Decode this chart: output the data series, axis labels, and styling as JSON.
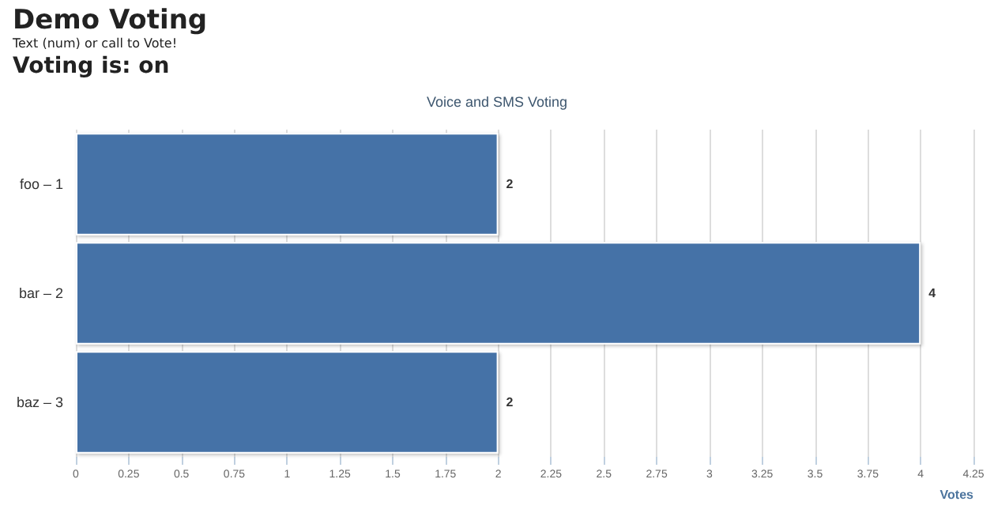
{
  "chart_data": {
    "type": "bar",
    "orientation": "horizontal",
    "title": "Voice and SMS Voting",
    "annotations": [
      "Demo Voting",
      "Text (num) or call to Vote!",
      "Voting is: on"
    ],
    "xlabel": "Votes",
    "categories": [
      "foo – 1",
      "bar – 2",
      "baz – 3"
    ],
    "values": [
      2,
      4,
      2
    ],
    "color": "#4572a7",
    "xlim": [
      0,
      4.25
    ],
    "xticks": [
      0,
      0.25,
      0.5,
      0.75,
      1,
      1.25,
      1.5,
      1.75,
      2,
      2.25,
      2.5,
      2.75,
      3,
      3.25,
      3.5,
      3.75,
      4,
      4.25
    ],
    "grid": "x",
    "data_labels": true
  }
}
